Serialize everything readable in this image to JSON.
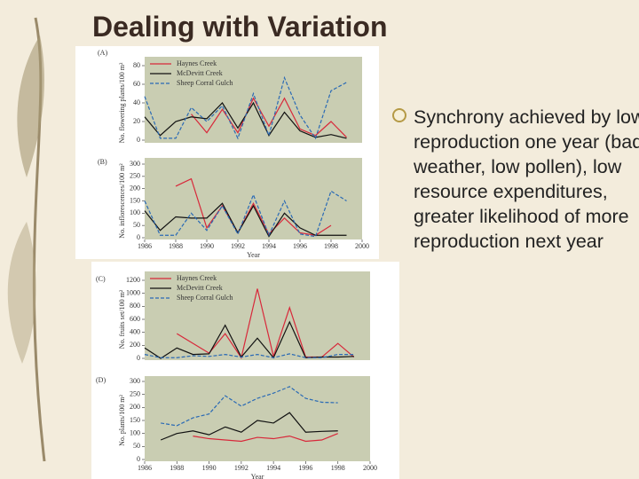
{
  "title": "Dealing with Variation",
  "bullet": "Synchrony achieved by low reproduction one year (bad weather, low pollen), low resource expenditures, greater likelihood of more reproduction next year",
  "chart_data": [
    {
      "type": "line",
      "panel": "(A)",
      "ylabel": "No. flowering plants/100 m²",
      "legend": true,
      "x": [
        1986,
        1987,
        1988,
        1989,
        1990,
        1991,
        1992,
        1993,
        1994,
        1995,
        1996,
        1997,
        1998,
        1999
      ],
      "xlim": [
        1986,
        2000
      ],
      "ylim": [
        0,
        80
      ],
      "yticks": [
        0,
        20,
        40,
        60,
        80
      ],
      "series": [
        {
          "name": "Haynes Creek",
          "color": "#d8283a",
          "linestyle": "solid",
          "values": [
            null,
            null,
            null,
            28,
            8,
            33,
            8,
            45,
            15,
            45,
            12,
            5,
            20,
            3
          ]
        },
        {
          "name": "McDevitt Creek",
          "color": "#111111",
          "linestyle": "solid",
          "values": [
            25,
            5,
            20,
            25,
            23,
            40,
            13,
            40,
            5,
            30,
            10,
            3,
            6,
            2
          ]
        },
        {
          "name": "Sheep Corral Gulch",
          "color": "#2a6ab5",
          "linestyle": "dashed",
          "values": [
            47,
            2,
            2,
            35,
            20,
            37,
            2,
            50,
            5,
            67,
            27,
            2,
            53,
            62
          ]
        }
      ]
    },
    {
      "type": "line",
      "panel": "(B)",
      "ylabel": "No. inflorescences/100 m²",
      "xlabel": "Year",
      "legend": false,
      "x": [
        1986,
        1987,
        1988,
        1989,
        1990,
        1991,
        1992,
        1993,
        1994,
        1995,
        1996,
        1997,
        1998,
        1999
      ],
      "xlim": [
        1986,
        2000
      ],
      "xticks": [
        1986,
        1988,
        1990,
        1992,
        1994,
        1996,
        1998,
        2000
      ],
      "ylim": [
        0,
        300
      ],
      "yticks": [
        0,
        50,
        100,
        150,
        200,
        250,
        300
      ],
      "series": [
        {
          "name": "Haynes Creek",
          "color": "#d8283a",
          "linestyle": "solid",
          "values": [
            null,
            null,
            210,
            240,
            40,
            130,
            20,
            140,
            15,
            80,
            20,
            10,
            50,
            null
          ]
        },
        {
          "name": "McDevitt Creek",
          "color": "#111111",
          "linestyle": "solid",
          "values": [
            110,
            30,
            85,
            80,
            80,
            140,
            20,
            130,
            5,
            100,
            40,
            10,
            10,
            10
          ]
        },
        {
          "name": "Sheep Corral Gulch",
          "color": "#2a6ab5",
          "linestyle": "dashed",
          "values": [
            150,
            10,
            10,
            100,
            30,
            130,
            15,
            175,
            10,
            150,
            15,
            5,
            190,
            150
          ]
        }
      ]
    },
    {
      "type": "line",
      "panel": "(C)",
      "ylabel": "No. fruits set/100 m²",
      "legend": true,
      "x": [
        1986,
        1987,
        1988,
        1989,
        1990,
        1991,
        1992,
        1993,
        1994,
        1995,
        1996,
        1997,
        1998,
        1999
      ],
      "xlim": [
        1986,
        2000
      ],
      "ylim": [
        0,
        1200
      ],
      "yticks": [
        0,
        200,
        400,
        600,
        800,
        1000,
        1200
      ],
      "series": [
        {
          "name": "Haynes Creek",
          "color": "#d8283a",
          "linestyle": "solid",
          "values": [
            null,
            null,
            380,
            230,
            80,
            380,
            10,
            1070,
            30,
            780,
            20,
            20,
            230,
            20
          ]
        },
        {
          "name": "McDevitt Creek",
          "color": "#111111",
          "linestyle": "solid",
          "values": [
            160,
            0,
            160,
            60,
            70,
            510,
            20,
            310,
            10,
            560,
            10,
            20,
            20,
            30
          ]
        },
        {
          "name": "Sheep Corral Gulch",
          "color": "#2a6ab5",
          "linestyle": "dashed",
          "values": [
            60,
            10,
            10,
            40,
            30,
            60,
            20,
            60,
            10,
            70,
            10,
            10,
            60,
            60
          ]
        }
      ]
    },
    {
      "type": "line",
      "panel": "(D)",
      "ylabel": "No. plants/100 m²",
      "xlabel": "Year",
      "legend": false,
      "x": [
        1987,
        1988,
        1989,
        1990,
        1991,
        1992,
        1993,
        1994,
        1995,
        1996,
        1997,
        1998
      ],
      "xlim": [
        1986,
        2000
      ],
      "xticks": [
        1986,
        1988,
        1990,
        1992,
        1994,
        1996,
        1998,
        2000
      ],
      "ylim": [
        0,
        300
      ],
      "yticks": [
        0,
        50,
        100,
        150,
        200,
        250,
        300
      ],
      "series": [
        {
          "name": "Haynes Creek",
          "color": "#d8283a",
          "linestyle": "solid",
          "values": [
            null,
            null,
            90,
            80,
            75,
            70,
            85,
            80,
            90,
            70,
            75,
            100
          ]
        },
        {
          "name": "McDevitt Creek",
          "color": "#111111",
          "linestyle": "solid",
          "values": [
            75,
            100,
            110,
            95,
            125,
            105,
            150,
            140,
            180,
            105,
            108,
            110
          ]
        },
        {
          "name": "Sheep Corral Gulch",
          "color": "#2a6ab5",
          "linestyle": "dashed",
          "values": [
            140,
            130,
            160,
            175,
            245,
            205,
            235,
            255,
            280,
            235,
            220,
            218
          ]
        }
      ]
    }
  ]
}
